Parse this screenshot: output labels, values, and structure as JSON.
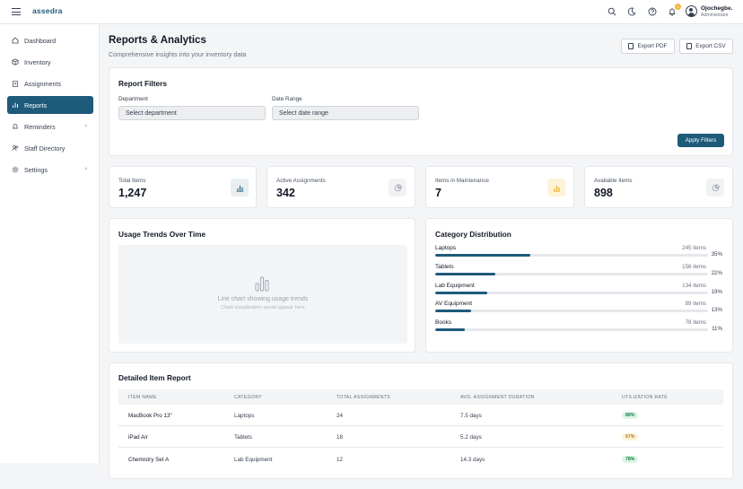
{
  "app": {
    "brand": "assedra",
    "user": {
      "name": "Ojochegbe.",
      "role": "Administrator"
    },
    "notification_count": "1"
  },
  "sidebar": {
    "items": [
      {
        "label": "Dashboard",
        "icon": "grid-icon",
        "active": false
      },
      {
        "label": "Inventory",
        "icon": "box-icon",
        "active": false
      },
      {
        "label": "Assignments",
        "icon": "clipboard-icon",
        "active": false
      },
      {
        "label": "Reports",
        "icon": "bar-chart-icon",
        "active": true
      },
      {
        "label": "Reminders",
        "icon": "bell-icon",
        "active": false,
        "chevron": "›"
      },
      {
        "label": "Staff Directory",
        "icon": "users-icon",
        "active": false
      },
      {
        "label": "Settings",
        "icon": "gear-icon",
        "active": false,
        "chevron": "›"
      }
    ]
  },
  "header": {
    "title": "Reports & Analytics",
    "subtitle": "Comprehensive insights into your inventory data",
    "export_pdf": "Export PDF",
    "export_csv": "Export CSV"
  },
  "filters": {
    "title": "Report Filters",
    "department_label": "Department",
    "department_value": "Select department",
    "date_label": "Date Range",
    "date_value": "Select date range",
    "apply": "Apply Filters"
  },
  "stats": [
    {
      "label": "Total Items",
      "value": "1,247",
      "icon": "bar-chart-icon",
      "accent": "#1e5a7a"
    },
    {
      "label": "Active Assignments",
      "value": "342",
      "icon": "pie-chart-icon",
      "accent": "#9ca3af"
    },
    {
      "label": "Items in Maintenance",
      "value": "7",
      "icon": "bar-chart-icon",
      "accent": "#e7a81c"
    },
    {
      "label": "Available Items",
      "value": "898",
      "icon": "pie-chart-icon",
      "accent": "#9ca3af"
    }
  ],
  "usage": {
    "title": "Usage Trends Over Time",
    "placeholder_line1": "Line chart showing usage trends",
    "placeholder_line2": "Chart visualization would appear here"
  },
  "categories": {
    "title": "Category Distribution",
    "items": [
      {
        "name": "Laptops",
        "count": "245 items",
        "pct": "35%",
        "fill": 0.35
      },
      {
        "name": "Tablets",
        "count": "156 items",
        "pct": "22%",
        "fill": 0.22
      },
      {
        "name": "Lab Equipment",
        "count": "134 items",
        "pct": "19%",
        "fill": 0.19
      },
      {
        "name": "AV Equipment",
        "count": "89 items",
        "pct": "13%",
        "fill": 0.13
      },
      {
        "name": "Books",
        "count": "78 items",
        "pct": "11%",
        "fill": 0.11
      }
    ]
  },
  "report": {
    "title": "Detailed Item Report",
    "columns": [
      "ITEM NAME",
      "CATEGORY",
      "TOTAL ASSIGNMENTS",
      "AVG. ASSIGNMENT DURATION",
      "UTILIZATION RATE"
    ],
    "rows": [
      {
        "name": "MacBook Pro 13\"",
        "category": "Laptops",
        "total": "24",
        "duration": "7.5 days",
        "rate": "89%",
        "rate_color": "green"
      },
      {
        "name": "iPad Air",
        "category": "Tablets",
        "total": "18",
        "duration": "5.2 days",
        "rate": "67%",
        "rate_color": "yellow"
      },
      {
        "name": "Chemistry Set A",
        "category": "Lab Equipment",
        "total": "12",
        "duration": "14.3 days",
        "rate": "78%",
        "rate_color": "green"
      }
    ]
  },
  "colors": {
    "brand": "#1e5a7a",
    "warning": "#e7a81c",
    "success": "#15803d"
  }
}
